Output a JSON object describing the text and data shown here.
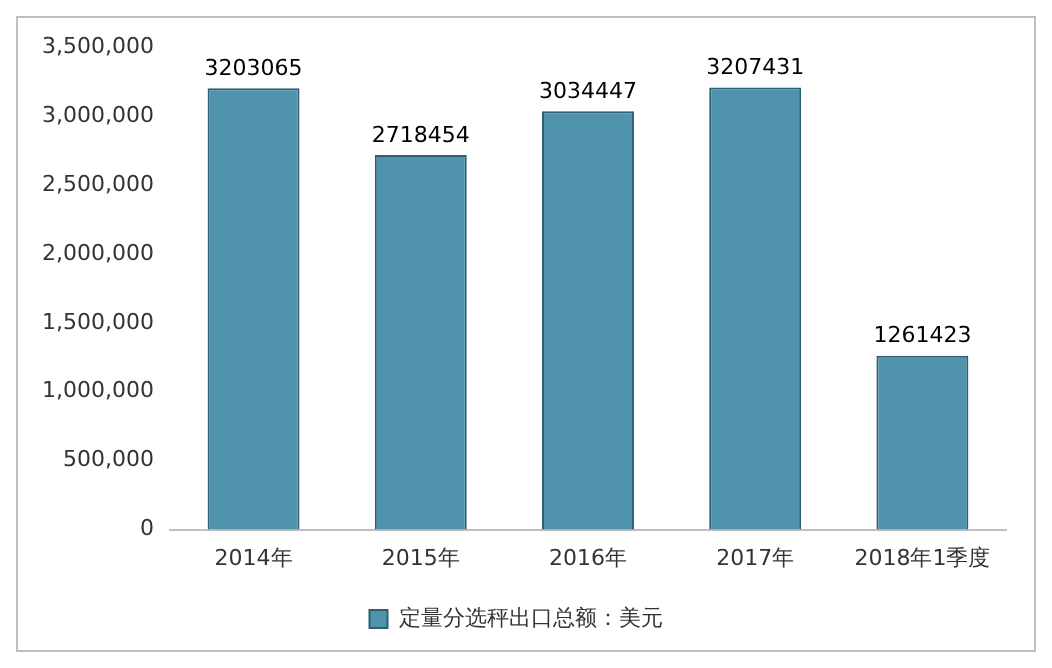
{
  "chart_data": {
    "type": "bar",
    "categories": [
      "2014年",
      "2015年",
      "2016年",
      "2017年",
      "2018年1季度"
    ],
    "series": [
      {
        "name": "定量分选秤出口总额：美元",
        "color": "#4f93ad",
        "values": [
          3203065,
          2718454,
          3034447,
          3207431,
          1261423
        ]
      }
    ],
    "ylim": [
      0,
      3500000
    ],
    "yticks": [
      0,
      {
        "value": 500000,
        "label": "500,000"
      },
      {
        "value": 1000000,
        "label": "1,000,000"
      },
      {
        "value": 1500000,
        "label": "1,500,000"
      },
      {
        "value": 2000000,
        "label": "2,000,000"
      },
      {
        "value": 2500000,
        "label": "2,500,000"
      },
      {
        "value": 3000000,
        "label": "3,000,000"
      },
      {
        "value": 3500000,
        "label": "3,500,000"
      }
    ],
    "data_labels": true,
    "grid": false,
    "legend": "bottom"
  }
}
